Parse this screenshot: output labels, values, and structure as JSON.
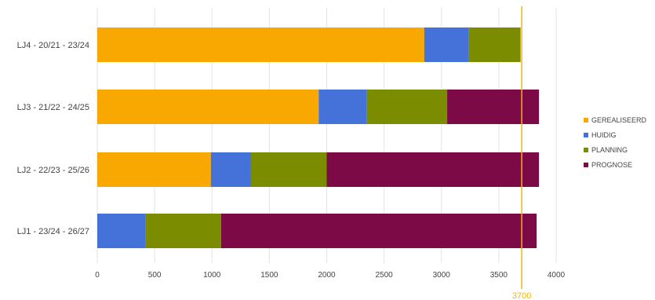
{
  "chart_data": {
    "type": "bar",
    "orientation": "horizontal",
    "stacked": true,
    "categories": [
      "LJ4 - 20/21 - 23/24",
      "LJ3 - 21/22 - 24/25",
      "LJ2 - 22/23 - 25/26",
      "LJ1 - 23/24 - 26/27"
    ],
    "series": [
      {
        "name": "GEREALISEERD",
        "color": "#F8A800",
        "values": [
          2850,
          1930,
          990,
          0
        ]
      },
      {
        "name": "HUIDIG",
        "color": "#4472D8",
        "values": [
          390,
          420,
          350,
          420
        ]
      },
      {
        "name": "PLANNING",
        "color": "#7B8C00",
        "values": [
          450,
          700,
          660,
          660
        ]
      },
      {
        "name": "PROGNOSE",
        "color": "#7B0A47",
        "values": [
          0,
          800,
          1850,
          2750
        ]
      }
    ],
    "xlim": [
      0,
      4000
    ],
    "xticks": [
      0,
      500,
      1000,
      1500,
      2000,
      2500,
      3000,
      3500,
      4000
    ],
    "reference_line": {
      "value": 3700,
      "label": "3700",
      "color": "#F8B400"
    },
    "grid": "vertical",
    "legend_position": "right"
  }
}
